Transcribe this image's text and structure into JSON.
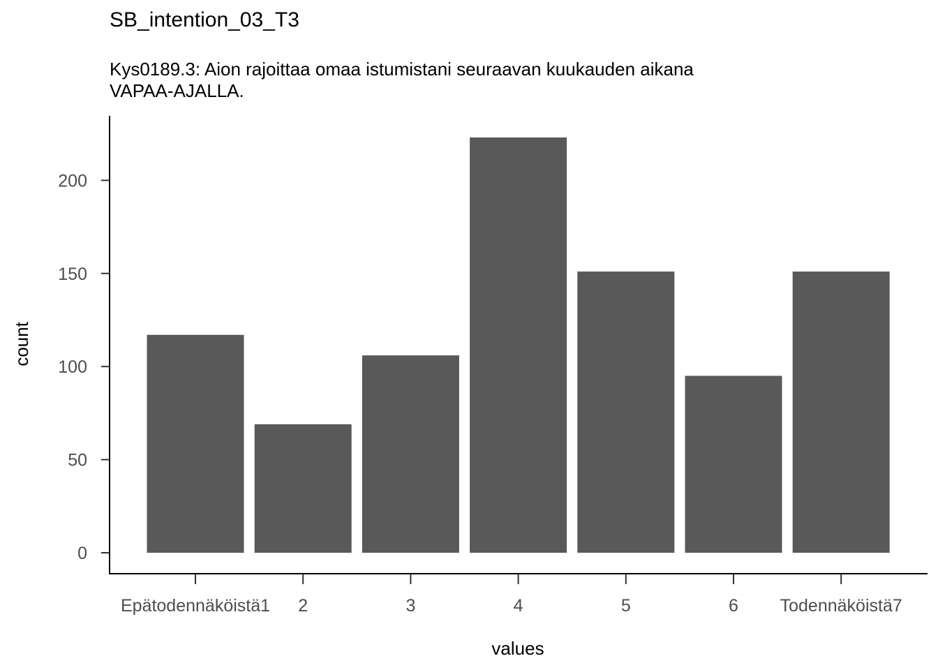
{
  "chart": {
    "title": "SB_intention_03_T3",
    "subtitle_lines": [
      "Kys0189.3: Aion rajoittaa omaa istumistani seuraavan kuukauden aikana",
      "VAPAA-AJALLA."
    ]
  },
  "chart_data": {
    "type": "bar",
    "title": "SB_intention_03_T3",
    "subtitle": "Kys0189.3: Aion rajoittaa omaa istumistani seuraavan kuukauden aikana VAPAA-AJALLA.",
    "categories": [
      "Epätodennäköistä1",
      "2",
      "3",
      "4",
      "5",
      "6",
      "Todennäköistä7"
    ],
    "values": [
      117,
      69,
      106,
      223,
      151,
      95,
      151
    ],
    "xlabel": "values",
    "ylabel": "count",
    "ylim": [
      0,
      235
    ],
    "yticks": [
      0,
      50,
      100,
      150,
      200
    ],
    "bar_color": "#595959",
    "grid": false,
    "legend": "none"
  }
}
